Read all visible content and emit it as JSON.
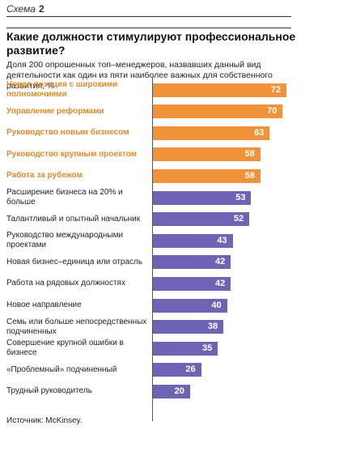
{
  "header": {
    "scheme_label": "Схема",
    "scheme_number": "2"
  },
  "title": "Какие должности стимулируют профессиональное развитие?",
  "subtitle": "Доля 200 опрошенных топ–менеджеров, назвавших данный вид деятельности как один из пяти наиболее важных для собственного развития, %",
  "source": "Источник: McKinsey.",
  "colors": {
    "highlight": "#f0923a",
    "regular": "#6e64b4",
    "highlight_text": "#e08a2a"
  },
  "chart_data": {
    "type": "bar",
    "orientation": "horizontal",
    "title": "Какие должности стимулируют профессиональное развитие?",
    "xlim": [
      0,
      72
    ],
    "grid": false,
    "categories": [
      "Новая позиция с широкими полномочиями",
      "Управление реформами",
      "Руководство новым бизнесом",
      "Руководство крупным проектом",
      "Работа за рубежом",
      "Расширение бизнеса на 20% и больше",
      "Талантливый и опытный начальник",
      "Руководство международными проектами",
      "Новая бизнес–единица или отрасль",
      "Работа на рядовых должностях",
      "Новое направление",
      "Семь или больше непосредственных подчиненных",
      "Совершение крупной ошибки в бизнесе",
      "«Проблемный» подчиненный",
      "Трудный руководитель"
    ],
    "values": [
      72,
      70,
      63,
      58,
      58,
      53,
      52,
      43,
      42,
      42,
      40,
      38,
      35,
      26,
      20
    ],
    "highlighted": [
      true,
      true,
      true,
      true,
      true,
      false,
      false,
      false,
      false,
      false,
      false,
      false,
      false,
      false,
      false
    ]
  }
}
